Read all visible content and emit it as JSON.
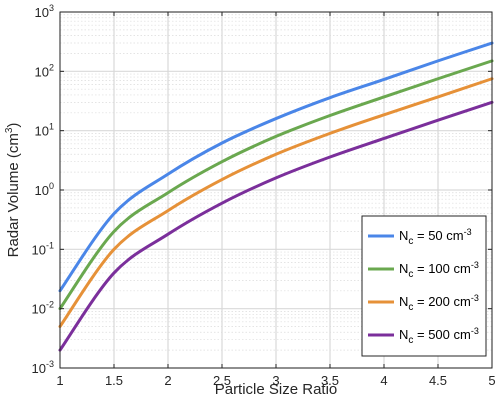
{
  "chart_data": {
    "type": "line",
    "title": "",
    "xlabel": "Particle Size Ratio",
    "ylabel_main": "Radar Volume (cm",
    "ylabel_sup": "3",
    "ylabel_end": ")",
    "xlim": [
      1,
      5
    ],
    "ylim": [
      0.001,
      1000
    ],
    "yscale": "log",
    "grid": "on",
    "legend_position": "bottom-right",
    "x_ticks": [
      1,
      1.5,
      2,
      2.5,
      3,
      3.5,
      4,
      4.5,
      5
    ],
    "x_tick_labels": [
      "1",
      "1.5",
      "2",
      "2.5",
      "3",
      "3.5",
      "4",
      "4.5",
      "5"
    ],
    "y_ticks": [
      {
        "value": 0.001,
        "base": "10",
        "exp": "-3"
      },
      {
        "value": 0.01,
        "base": "10",
        "exp": "-2"
      },
      {
        "value": 0.1,
        "base": "10",
        "exp": "-1"
      },
      {
        "value": 1,
        "base": "10",
        "exp": "0"
      },
      {
        "value": 10,
        "base": "10",
        "exp": "1"
      },
      {
        "value": 100,
        "base": "10",
        "exp": "2"
      },
      {
        "value": 1000,
        "base": "10",
        "exp": "3"
      }
    ],
    "x": [
      1,
      1.5,
      2,
      2.5,
      3,
      3.5,
      4,
      4.5,
      5
    ],
    "series": [
      {
        "label_base": "N",
        "label_sub": "c",
        "label_mid": " = 50 cm",
        "label_sup": "-3",
        "color": "#4a86e8",
        "values": [
          0.02,
          0.4,
          1.85,
          6.2,
          16,
          36,
          73,
          150,
          300
        ]
      },
      {
        "label_base": "N",
        "label_sub": "c",
        "label_mid": " = 100 cm",
        "label_sup": "-3",
        "color": "#6aa84f",
        "values": [
          0.01,
          0.2,
          0.9,
          3.0,
          8.0,
          18,
          37,
          75,
          150
        ]
      },
      {
        "label_base": "N",
        "label_sub": "c",
        "label_mid": " = 200 cm",
        "label_sup": "-3",
        "color": "#e69138",
        "values": [
          0.005,
          0.1,
          0.45,
          1.5,
          4.0,
          9.0,
          18.5,
          37,
          75
        ]
      },
      {
        "label_base": "N",
        "label_sub": "c",
        "label_mid": " = 500 cm",
        "label_sup": "-3",
        "color": "#7b2f9b",
        "values": [
          0.002,
          0.04,
          0.18,
          0.6,
          1.6,
          3.6,
          7.4,
          15,
          30
        ]
      }
    ]
  }
}
